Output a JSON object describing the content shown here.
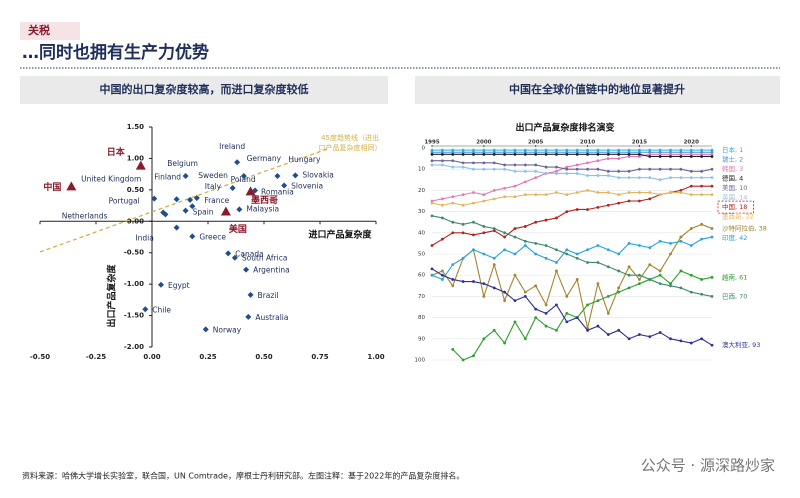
{
  "header": {
    "tag": "关税",
    "title": "…同时也拥有生产力优势"
  },
  "source": "资料来源：哈佛大学增长实验室，联合国，UN Comtrade，摩根士丹利研究部。左图注释：基于2022年的产品复杂度排名。",
  "watermark": "公众号 · 源深路炒家",
  "chart_data": [
    {
      "type": "scatter",
      "title": "中国的出口复杂度较高，而进口复杂度较低",
      "x_label": "进口产品复杂度",
      "y_label": "出口产品复杂度",
      "trend_note": [
        "45度趋势线（进出",
        "口产品复杂度相同）"
      ],
      "color": "#1f4e8c",
      "highlight_color": "#8b1a2b",
      "trend_color": "#d4b04a",
      "xlim": [
        -0.5,
        1.0
      ],
      "ylim": [
        -2.0,
        1.5
      ],
      "xticks": [
        {
          "value": -0.5,
          "label": "-0.50"
        },
        {
          "value": -0.25,
          "label": "-0.25"
        },
        {
          "value": 0,
          "label": "0.00"
        },
        {
          "value": 0.25,
          "label": "0.25"
        },
        {
          "value": 0.5,
          "label": "0.50"
        },
        {
          "value": 0.75,
          "label": "0.75"
        },
        {
          "value": 1,
          "label": "1.00"
        }
      ],
      "yticks": [
        {
          "value": 1.5,
          "label": "1.50"
        },
        {
          "value": 1,
          "label": "1.00"
        },
        {
          "value": 0.5,
          "label": "0.50"
        },
        {
          "value": 0,
          "label": "0.00"
        },
        {
          "value": -0.5,
          "label": "-0.50"
        },
        {
          "value": -1,
          "label": "-1.00"
        },
        {
          "value": -1.5,
          "label": "-1.50"
        },
        {
          "value": -2,
          "label": "-2.00"
        }
      ],
      "points": [
        {
          "label": "Ireland",
          "x": 0.38,
          "y": 0.94,
          "marker": "diamond"
        },
        {
          "label": "Germany",
          "x": 0.41,
          "y": 0.72,
          "marker": "diamond"
        },
        {
          "label": "Hungary",
          "x": 0.56,
          "y": 0.72,
          "marker": "diamond"
        },
        {
          "label": "Slovakia",
          "x": 0.64,
          "y": 0.73,
          "marker": "diamond"
        },
        {
          "label": "Slovenia",
          "x": 0.59,
          "y": 0.57,
          "marker": "diamond"
        },
        {
          "label": "Romania",
          "x": 0.46,
          "y": 0.49,
          "marker": "diamond"
        },
        {
          "label": "Poland",
          "x": 0.36,
          "y": 0.53,
          "marker": "diamond"
        },
        {
          "label": "Malaysia",
          "x": 0.39,
          "y": 0.19,
          "marker": "diamond"
        },
        {
          "label": "日本",
          "x": -0.05,
          "y": 0.87,
          "marker": "triangle"
        },
        {
          "label": "中国",
          "x": -0.36,
          "y": 0.54,
          "marker": "triangle"
        },
        {
          "label": "墨西哥",
          "x": 0.44,
          "y": 0.46,
          "marker": "triangle"
        },
        {
          "label": "美国",
          "x": 0.33,
          "y": 0.14,
          "marker": "triangle"
        },
        {
          "label": "Belgium",
          "x": 0.15,
          "y": 0.72,
          "marker": "diamond"
        },
        {
          "label": "Finland",
          "x": 0.11,
          "y": 0.35,
          "marker": "diamond"
        },
        {
          "label": "Sweden",
          "x": 0.17,
          "y": 0.34,
          "marker": "diamond"
        },
        {
          "label": "United Kingdom",
          "x": 0.01,
          "y": 0.36,
          "marker": "diamond"
        },
        {
          "label": "Italy",
          "x": 0.2,
          "y": 0.37,
          "marker": "diamond"
        },
        {
          "label": "France",
          "x": 0.18,
          "y": 0.24,
          "marker": "diamond"
        },
        {
          "label": "Portugal",
          "x": 0.05,
          "y": 0.14,
          "marker": "diamond"
        },
        {
          "label": "Spain",
          "x": 0.15,
          "y": 0.17,
          "marker": "diamond"
        },
        {
          "label": "Netherlands",
          "x": 0.06,
          "y": 0.11,
          "marker": "diamond"
        },
        {
          "label": "India",
          "x": 0.11,
          "y": -0.1,
          "marker": "diamond"
        },
        {
          "label": "Greece",
          "x": 0.18,
          "y": -0.24,
          "marker": "diamond"
        },
        {
          "label": "Canada",
          "x": 0.34,
          "y": -0.51,
          "marker": "diamond"
        },
        {
          "label": "South Africa",
          "x": 0.37,
          "y": -0.58,
          "marker": "diamond"
        },
        {
          "label": "Argentina",
          "x": 0.42,
          "y": -0.77,
          "marker": "diamond"
        },
        {
          "label": "Brazil",
          "x": 0.44,
          "y": -1.17,
          "marker": "diamond"
        },
        {
          "label": "Australia",
          "x": 0.43,
          "y": -1.52,
          "marker": "diamond"
        },
        {
          "label": "Norway",
          "x": 0.24,
          "y": -1.72,
          "marker": "diamond"
        },
        {
          "label": "Egypt",
          "x": 0.04,
          "y": -1.01,
          "marker": "diamond"
        },
        {
          "label": "Chile",
          "x": -0.03,
          "y": -1.4,
          "marker": "diamond"
        }
      ]
    },
    {
      "type": "line",
      "title": "中国在全球价值链中的地位显著提升",
      "subtitle": "出口产品复杂度排名演变",
      "x": [
        1995,
        1996,
        1997,
        1998,
        1999,
        2000,
        2001,
        2002,
        2003,
        2004,
        2005,
        2006,
        2007,
        2008,
        2009,
        2010,
        2011,
        2012,
        2013,
        2014,
        2015,
        2016,
        2017,
        2018,
        2019,
        2020,
        2021,
        2022
      ],
      "xlim": [
        1995,
        2022
      ],
      "xticks": [
        1995,
        2000,
        2005,
        2010,
        2015,
        2020
      ],
      "ylim": [
        100,
        0
      ],
      "yticks": [
        0,
        10,
        20,
        30,
        40,
        50,
        60,
        70,
        80,
        90,
        100
      ],
      "grid": true,
      "series": [
        {
          "name": "日本",
          "label": "日本, 1",
          "color": "#22b3e8",
          "values": [
            1,
            1,
            1,
            1,
            1,
            1,
            1,
            1,
            1,
            1,
            1,
            1,
            1,
            1,
            1,
            1,
            1,
            1,
            1,
            1,
            1,
            1,
            1,
            1,
            1,
            1,
            1,
            1
          ]
        },
        {
          "name": "瑞士",
          "label": "瑞士, 2",
          "color": "#4f8fd0",
          "values": [
            2,
            2,
            2,
            2,
            2,
            2,
            2,
            2,
            2,
            2,
            2,
            2,
            2,
            2,
            2,
            2,
            2,
            2,
            2,
            2,
            2,
            2,
            2,
            2,
            2,
            2,
            2,
            2
          ]
        },
        {
          "name": "韩国",
          "label": "韩国, 3",
          "color": "#e07ab8",
          "values": [
            25,
            24,
            23,
            22,
            21,
            22,
            20,
            19,
            18,
            16,
            14,
            12,
            11,
            9,
            8,
            7,
            6,
            5,
            5,
            4,
            4,
            3,
            3,
            3,
            3,
            3,
            3,
            3
          ]
        },
        {
          "name": "德国",
          "label": "德国, 4",
          "color": "#222222",
          "values": [
            3,
            3,
            3,
            3,
            3,
            3,
            3,
            3,
            3,
            3,
            3,
            3,
            3,
            3,
            3,
            3,
            3,
            3,
            3,
            3,
            3,
            4,
            4,
            4,
            4,
            4,
            4,
            4
          ]
        },
        {
          "name": "美国",
          "label": "美国, 10",
          "color": "#6a6a9a",
          "values": [
            6,
            6,
            6,
            7,
            7,
            7,
            7,
            8,
            8,
            8,
            8,
            9,
            9,
            10,
            10,
            10,
            10,
            11,
            11,
            11,
            10,
            10,
            10,
            10,
            10,
            11,
            11,
            10
          ]
        },
        {
          "name": "英国",
          "label": "英国, 14",
          "color": "#8fc3e6",
          "values": [
            8,
            8,
            9,
            9,
            10,
            10,
            10,
            10,
            11,
            11,
            11,
            12,
            12,
            12,
            12,
            13,
            13,
            13,
            14,
            14,
            14,
            14,
            15,
            14,
            14,
            14,
            14,
            14
          ]
        },
        {
          "name": "中国",
          "label": "中国, 18",
          "color": "#b22222",
          "highlight": true,
          "values": [
            46,
            43,
            40,
            40,
            41,
            40,
            39,
            42,
            38,
            37,
            35,
            34,
            33,
            30,
            29,
            29,
            28,
            27,
            26,
            25,
            25,
            24,
            22,
            21,
            20,
            18,
            18,
            18
          ]
        },
        {
          "name": "墨西哥",
          "label": "墨西哥, 22",
          "color": "#e2b65c",
          "values": [
            26,
            27,
            26,
            27,
            26,
            25,
            24,
            23,
            23,
            22,
            22,
            22,
            21,
            22,
            21,
            20,
            21,
            21,
            22,
            21,
            21,
            21,
            22,
            21,
            21,
            22,
            22,
            22
          ]
        },
        {
          "name": "沙特阿拉伯",
          "label": "沙特阿拉伯, 38",
          "color": "#a5842e",
          "values": [
            60,
            58,
            65,
            52,
            48,
            70,
            55,
            72,
            60,
            68,
            65,
            74,
            58,
            70,
            62,
            85,
            64,
            78,
            66,
            56,
            62,
            55,
            58,
            50,
            42,
            38,
            36,
            38
          ]
        },
        {
          "name": "印度",
          "label": "印度, 42",
          "color": "#2aa3d6",
          "values": [
            60,
            62,
            55,
            52,
            48,
            50,
            52,
            48,
            50,
            46,
            50,
            52,
            54,
            48,
            50,
            48,
            46,
            48,
            50,
            45,
            46,
            47,
            44,
            45,
            44,
            46,
            43,
            42
          ]
        },
        {
          "name": "越南",
          "label": "越南, 61",
          "color": "#2ca02c",
          "values": [
            null,
            null,
            95,
            100,
            98,
            90,
            86,
            92,
            82,
            90,
            80,
            84,
            86,
            78,
            80,
            74,
            72,
            70,
            68,
            66,
            64,
            62,
            60,
            64,
            58,
            60,
            62,
            61
          ]
        },
        {
          "name": "巴西",
          "label": "巴西, 70",
          "color": "#3d8a6e",
          "values": [
            32,
            33,
            35,
            36,
            35,
            37,
            38,
            40,
            42,
            44,
            45,
            46,
            48,
            50,
            52,
            54,
            54,
            56,
            58,
            60,
            60,
            62,
            64,
            65,
            66,
            68,
            69,
            70
          ]
        },
        {
          "name": "澳大利亚",
          "label": "澳大利亚, 93",
          "color": "#2e3192",
          "values": [
            57,
            60,
            62,
            63,
            63,
            64,
            66,
            68,
            72,
            70,
            76,
            78,
            74,
            82,
            80,
            86,
            84,
            88,
            86,
            90,
            88,
            89,
            87,
            90,
            91,
            92,
            90,
            93
          ]
        }
      ]
    }
  ]
}
